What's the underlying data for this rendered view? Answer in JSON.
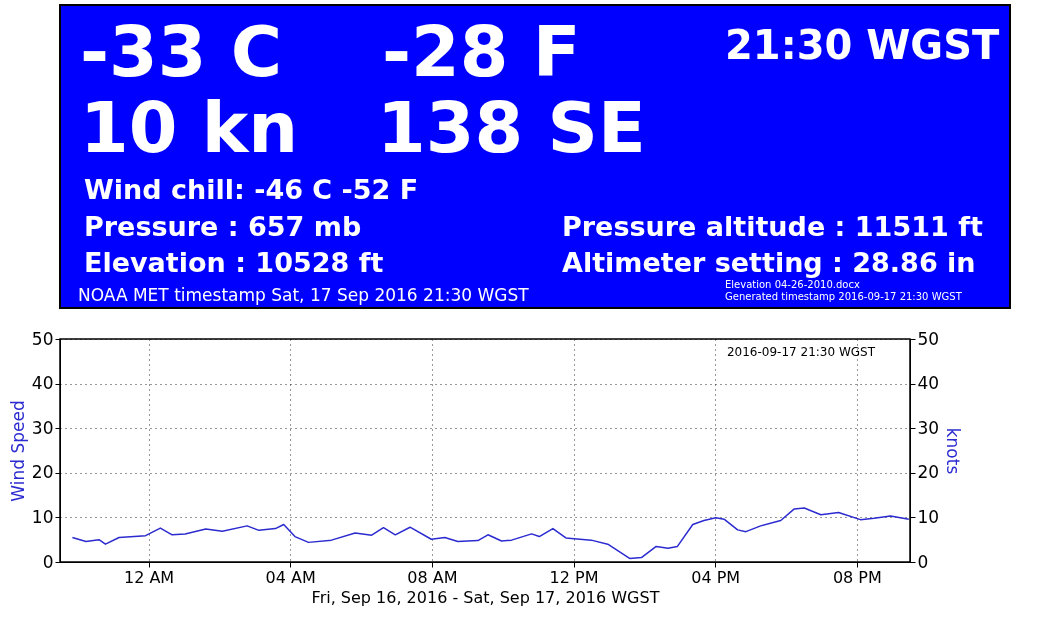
{
  "chart_data": [
    {
      "type": "other",
      "annotations": [
        "-33 C",
        "-28 F",
        "21:30 WGST",
        "10 kn",
        "138 SE",
        "Wind chill: -46 C  -52 F",
        "Pressure  : 657 mb",
        "Elevation : 10528 ft",
        "Pressure altitude : 11511 ft",
        "Altimeter setting : 28.86 in",
        "NOAA MET timestamp Sat, 17 Sep 2016 21:30 WGST",
        "Elevation 04-26-2010.docx",
        "Generated timestamp 2016-09-17 21:30 WGST"
      ]
    },
    {
      "type": "line",
      "xlabel": "Fri, Sep 16, 2016 - Sat, Sep 17, 2016 WGST",
      "ylabel": "Wind Speed",
      "y2label": "knots",
      "annotations": [
        "2016-09-17 21:30 WGST"
      ],
      "xlim": [
        "2016-09-16T21:30",
        "2016-09-17T21:30"
      ],
      "xticks": [
        {
          "value": "2016-09-17T00:00",
          "label": "12 AM"
        },
        {
          "value": "2016-09-17T04:00",
          "label": "04 AM"
        },
        {
          "value": "2016-09-17T08:00",
          "label": "08 AM"
        },
        {
          "value": "2016-09-17T12:00",
          "label": "12 PM"
        },
        {
          "value": "2016-09-17T16:00",
          "label": "04 PM"
        },
        {
          "value": "2016-09-17T20:00",
          "label": "08 PM"
        }
      ],
      "ylim": [
        0,
        50
      ],
      "yticks": [
        0,
        10,
        20,
        30,
        40,
        50
      ],
      "y2lim": [
        0,
        50
      ],
      "y2ticks": [
        0,
        10,
        20,
        30,
        40,
        50
      ],
      "grid": true,
      "marker": "none",
      "line_style": "solid",
      "series": [
        {
          "color": "#2b2bd0",
          "x": [
            "2016-09-16T21:51",
            "2016-09-16T22:14",
            "2016-09-16T22:36",
            "2016-09-16T22:47",
            "2016-09-16T23:10",
            "2016-09-16T23:55",
            "2016-09-17T00:20",
            "2016-09-17T00:40",
            "2016-09-17T01:02",
            "2016-09-17T01:37",
            "2016-09-17T02:05",
            "2016-09-17T02:47",
            "2016-09-17T03:07",
            "2016-09-17T03:35",
            "2016-09-17T03:49",
            "2016-09-17T04:08",
            "2016-09-17T04:31",
            "2016-09-17T05:10",
            "2016-09-17T05:50",
            "2016-09-17T06:18",
            "2016-09-17T06:38",
            "2016-09-17T06:58",
            "2016-09-17T07:23",
            "2016-09-17T07:59",
            "2016-09-17T08:22",
            "2016-09-17T08:44",
            "2016-09-17T09:18",
            "2016-09-17T09:35",
            "2016-09-17T09:58",
            "2016-09-17T10:15",
            "2016-09-17T10:49",
            "2016-09-17T11:02",
            "2016-09-17T11:25",
            "2016-09-17T11:47",
            "2016-09-17T12:30",
            "2016-09-17T12:58",
            "2016-09-17T13:35",
            "2016-09-17T13:55",
            "2016-09-17T14:20",
            "2016-09-17T14:40",
            "2016-09-17T14:56",
            "2016-09-17T15:22",
            "2016-09-17T15:41",
            "2016-09-17T16:01",
            "2016-09-17T16:15",
            "2016-09-17T16:38",
            "2016-09-17T16:52",
            "2016-09-17T17:17",
            "2016-09-17T17:51",
            "2016-09-17T18:14",
            "2016-09-17T18:31",
            "2016-09-17T18:59",
            "2016-09-17T19:29",
            "2016-09-17T20:06",
            "2016-09-17T20:29",
            "2016-09-17T20:57",
            "2016-09-17T21:28"
          ],
          "values": [
            5.5,
            4.6,
            5.0,
            4.0,
            5.5,
            5.9,
            7.6,
            6.1,
            6.3,
            7.4,
            6.9,
            8.1,
            7.1,
            7.5,
            8.4,
            5.7,
            4.4,
            4.9,
            6.5,
            6.0,
            7.7,
            6.1,
            7.8,
            5.1,
            5.5,
            4.6,
            4.8,
            6.1,
            4.7,
            4.9,
            6.3,
            5.7,
            7.5,
            5.4,
            4.9,
            4.0,
            0.8,
            1.0,
            3.5,
            3.1,
            3.5,
            8.4,
            9.3,
            9.9,
            9.6,
            7.2,
            6.8,
            8.1,
            9.3,
            11.9,
            12.1,
            10.6,
            11.1,
            9.5,
            9.8,
            10.3,
            9.6
          ]
        }
      ]
    }
  ]
}
